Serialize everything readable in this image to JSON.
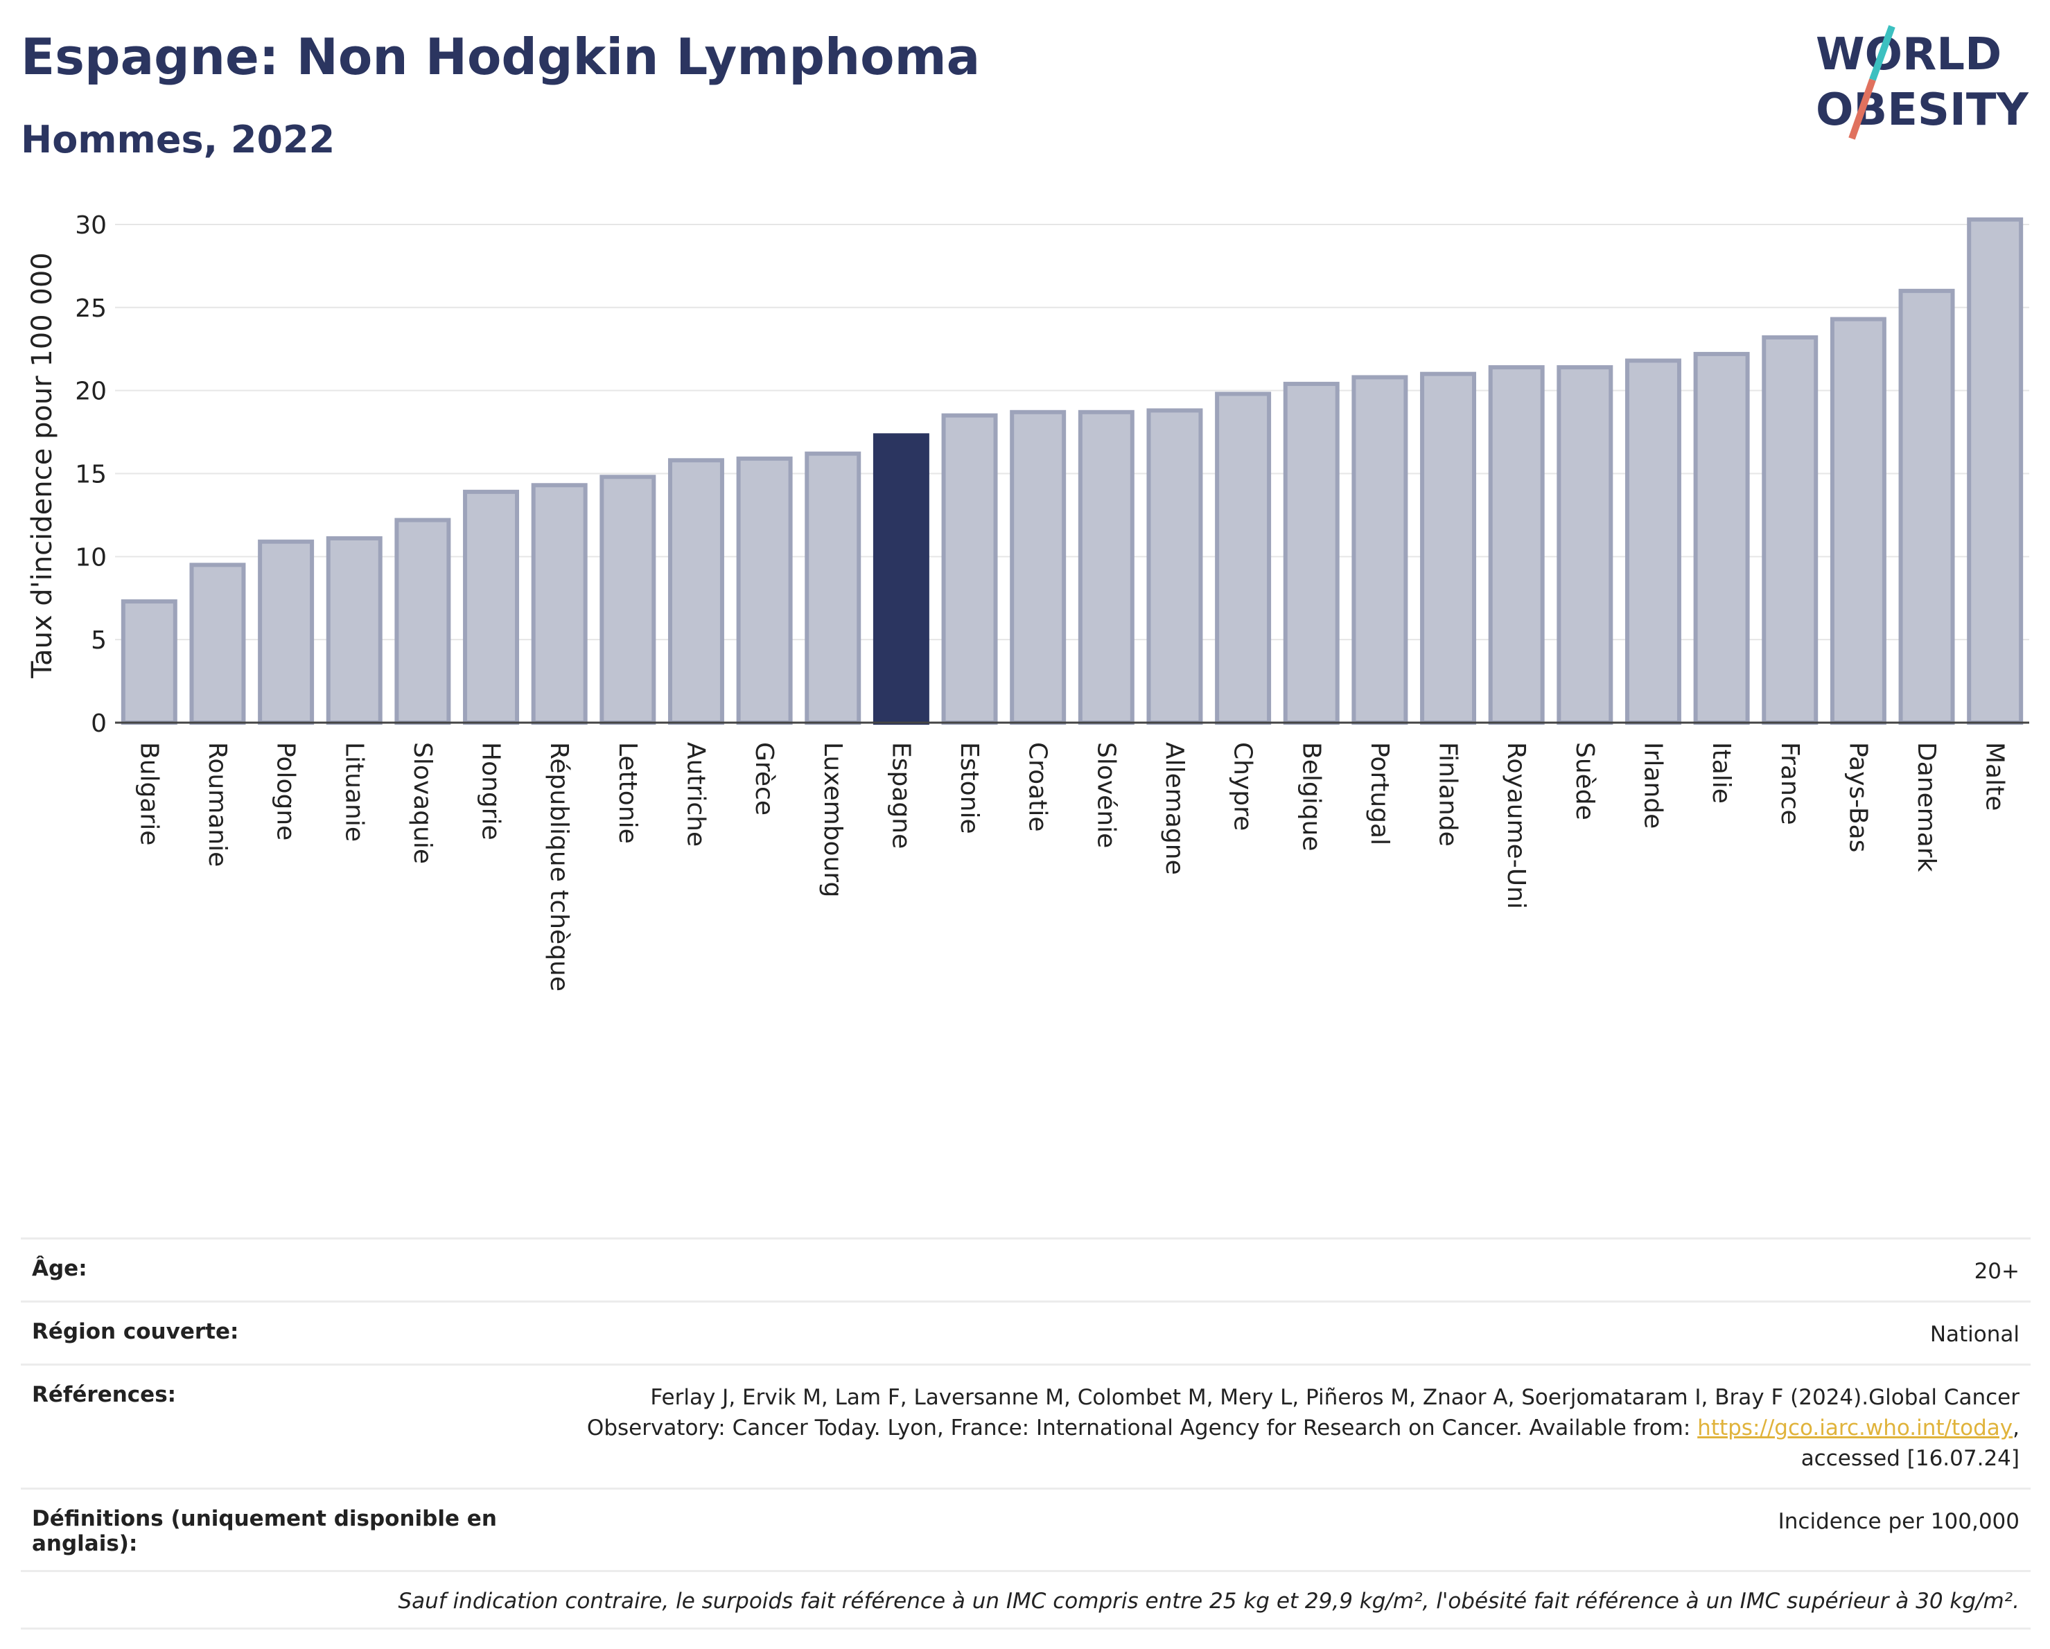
{
  "title": "Espagne: Non Hodgkin Lymphoma",
  "subtitle": "Hommes, 2022",
  "logo": {
    "line1": "WORLD",
    "line2": "OBESITY"
  },
  "colors": {
    "bar": "#bfc3d1",
    "bar_border": "#9da3ba",
    "highlight": "#2b3560",
    "title": "#2b3560",
    "logo_slash_top": "#3cc0c0",
    "logo_slash_bottom": "#e0715e",
    "link": "#e0b33b"
  },
  "chart_data": {
    "type": "bar",
    "ylabel": "Taux d'incidence pour 100 000",
    "ylim": [
      0,
      31
    ],
    "yticks": [
      0,
      5,
      10,
      15,
      20,
      25,
      30
    ],
    "grid": true,
    "highlight": "Espagne",
    "categories": [
      "Bulgarie",
      "Roumanie",
      "Pologne",
      "Lituanie",
      "Slovaquie",
      "Hongrie",
      "République tchèque",
      "Lettonie",
      "Autriche",
      "Grèce",
      "Luxembourg",
      "Espagne",
      "Estonie",
      "Croatie",
      "Slovénie",
      "Allemagne",
      "Chypre",
      "Belgique",
      "Portugal",
      "Finlande",
      "Royaume-Uni",
      "Suède",
      "Irlande",
      "Italie",
      "France",
      "Pays-Bas",
      "Danemark",
      "Malte"
    ],
    "values": [
      7.3,
      9.5,
      10.9,
      11.1,
      12.2,
      13.9,
      14.3,
      14.8,
      15.8,
      15.9,
      16.2,
      17.3,
      18.5,
      18.7,
      18.7,
      18.8,
      19.8,
      20.4,
      20.8,
      21.0,
      21.4,
      21.4,
      21.8,
      22.2,
      23.2,
      24.3,
      26.0,
      30.3
    ]
  },
  "info": {
    "age_label": "Âge:",
    "age_value": "20+",
    "region_label": "Région couverte:",
    "region_value": "National",
    "refs_label": "Références:",
    "refs_text_1": "Ferlay J, Ervik M, Lam F, Laversanne M, Colombet M, Mery L, Piñeros M, Znaor A, Soerjomataram I, Bray F (2024).Global Cancer",
    "refs_text_2": "Observatory: Cancer Today. Lyon, France: International Agency for Research on Cancer. Available from: ",
    "refs_link": "https://gco.iarc.who.int/today",
    "refs_text_3": ",",
    "refs_text_4": "accessed [16.07.24]",
    "defs_label": "Définitions (uniquement disponible en anglais):",
    "defs_value": "Incidence per 100,000",
    "note": "Sauf indication contraire, le surpoids fait référence à un IMC compris entre 25 kg et 29,9 kg/m², l'obésité fait référence à un IMC supérieur à 30 kg/m²."
  }
}
